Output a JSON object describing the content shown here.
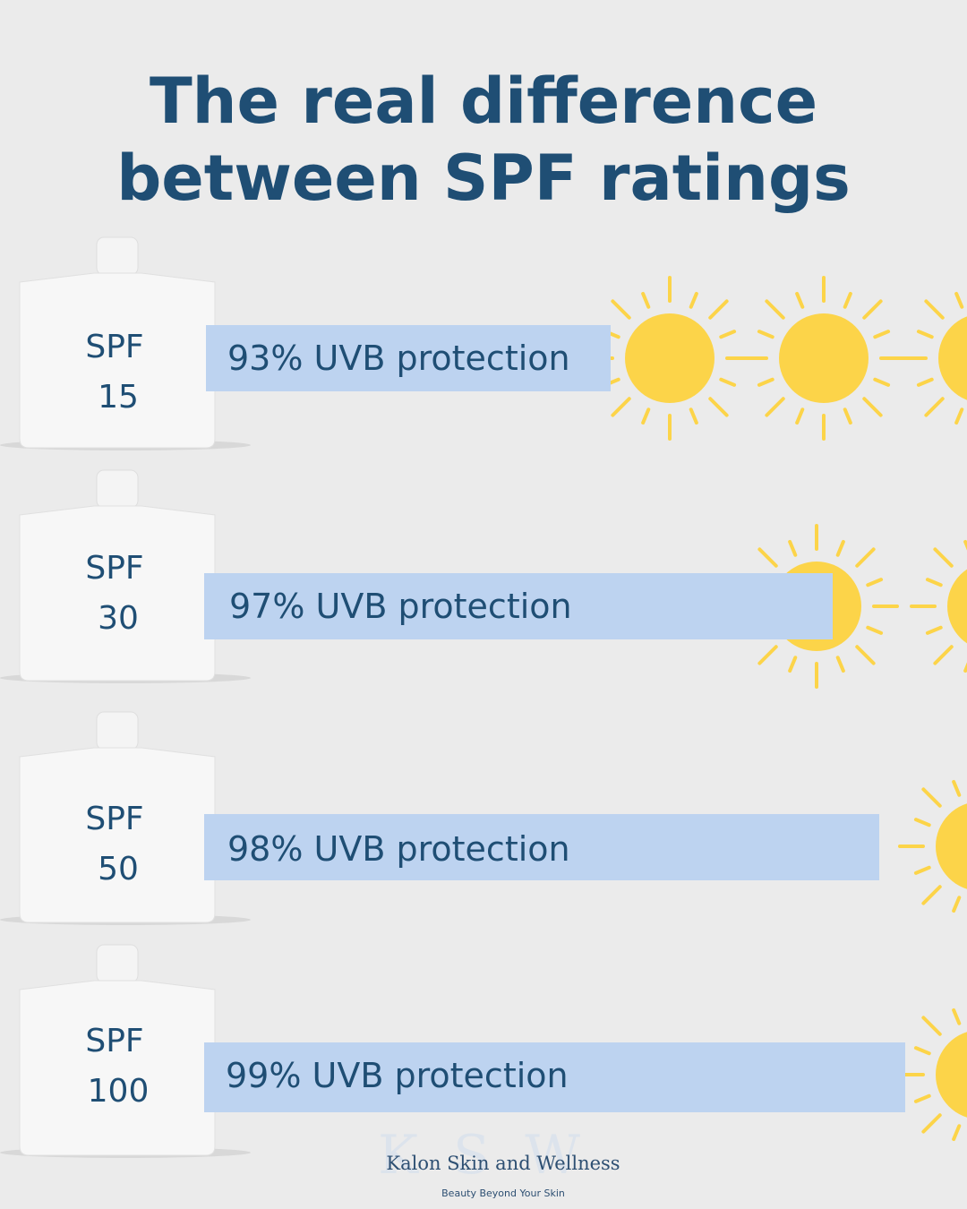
{
  "header": {
    "title": [
      "The real difference",
      "between SPF ratings"
    ]
  },
  "rows": [
    {
      "spf": [
        "SPF",
        "15"
      ],
      "protection": "93% UVB protection"
    },
    {
      "spf": [
        "SPF",
        "30"
      ],
      "protection": "97% UVB protection"
    },
    {
      "spf": [
        "SPF",
        "50"
      ],
      "protection": "98% UVB protection"
    },
    {
      "spf": [
        "SPF",
        "100"
      ],
      "protection": "99% UVB protection"
    }
  ],
  "footer": {
    "watermark": "K S W",
    "brand": "Kalon Skin and Wellness",
    "tagline": "Beauty Beyond Your Skin"
  }
}
